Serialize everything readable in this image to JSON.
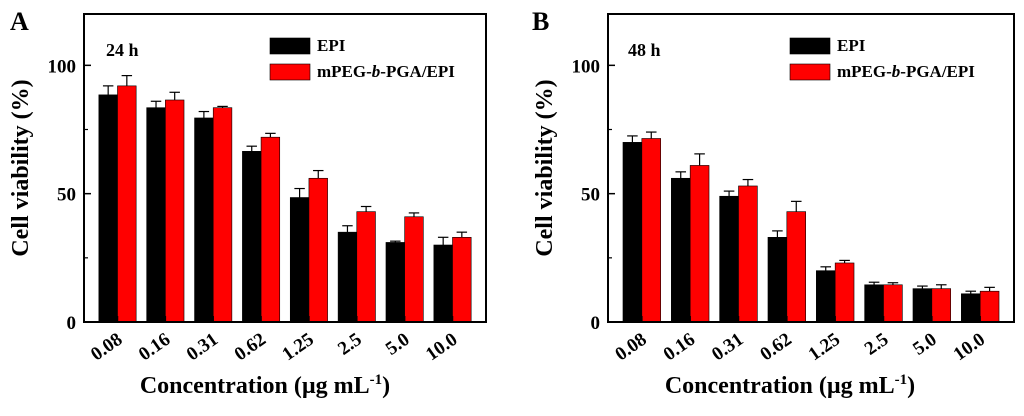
{
  "chart_data": [
    {
      "type": "bar",
      "panel_label": "A",
      "time_label": "24 h",
      "ylabel": "Cell viability (%)",
      "xlabel_main": "Concentration (µg mL",
      "xlabel_sup": "-1",
      "xlabel_close": ")",
      "ylim": [
        0,
        120
      ],
      "yticks": [
        0,
        50,
        100
      ],
      "ytick_labels": [
        "0",
        "50",
        "100"
      ],
      "categories": [
        "0.08",
        "0.16",
        "0.31",
        "0.62",
        "1.25",
        "2.5",
        "5.0",
        "10.0"
      ],
      "legend_position": "top-right",
      "series": [
        {
          "name": "EPI",
          "legend_prefix": "EPI",
          "legend_italic": "",
          "legend_suffix": "",
          "color": "#000000",
          "values": [
            88.5,
            83.5,
            79.5,
            66.5,
            48.5,
            35,
            31,
            30
          ],
          "errors": [
            3.5,
            2.5,
            2.5,
            2,
            3.5,
            2.5,
            0.5,
            3
          ]
        },
        {
          "name": "mPEG-b-PGA/EPI",
          "legend_prefix": "mPEG-",
          "legend_italic": "b",
          "legend_suffix": "-PGA/EPI",
          "color": "#ff0000",
          "values": [
            92,
            86.5,
            83.5,
            72,
            56,
            43,
            41,
            33
          ],
          "errors": [
            4,
            3,
            0.5,
            1.5,
            3,
            2,
            1.5,
            2
          ]
        }
      ]
    },
    {
      "type": "bar",
      "panel_label": "B",
      "time_label": "48 h",
      "ylabel": "Cell viability (%)",
      "xlabel_main": "Concentration (µg mL",
      "xlabel_sup": "-1",
      "xlabel_close": ")",
      "ylim": [
        0,
        120
      ],
      "yticks": [
        0,
        50,
        100
      ],
      "ytick_labels": [
        "0",
        "50",
        "100"
      ],
      "categories": [
        "0.08",
        "0.16",
        "0.31",
        "0.62",
        "1.25",
        "2.5",
        "5.0",
        "10.0"
      ],
      "legend_position": "top-right",
      "series": [
        {
          "name": "EPI",
          "legend_prefix": "EPI",
          "legend_italic": "",
          "legend_suffix": "",
          "color": "#000000",
          "values": [
            70,
            56,
            49,
            33,
            20,
            14.5,
            13,
            11
          ],
          "errors": [
            2.5,
            2.5,
            2,
            2.5,
            1.5,
            1,
            1,
            1
          ]
        },
        {
          "name": "mPEG-b-PGA/EPI",
          "legend_prefix": "mPEG-",
          "legend_italic": "b",
          "legend_suffix": "-PGA/EPI",
          "color": "#ff0000",
          "values": [
            71.5,
            61,
            53,
            43,
            23,
            14.5,
            13,
            12
          ],
          "errors": [
            2.5,
            4.5,
            2.5,
            4,
            1,
            0.8,
            1.5,
            1.5
          ]
        }
      ]
    }
  ]
}
